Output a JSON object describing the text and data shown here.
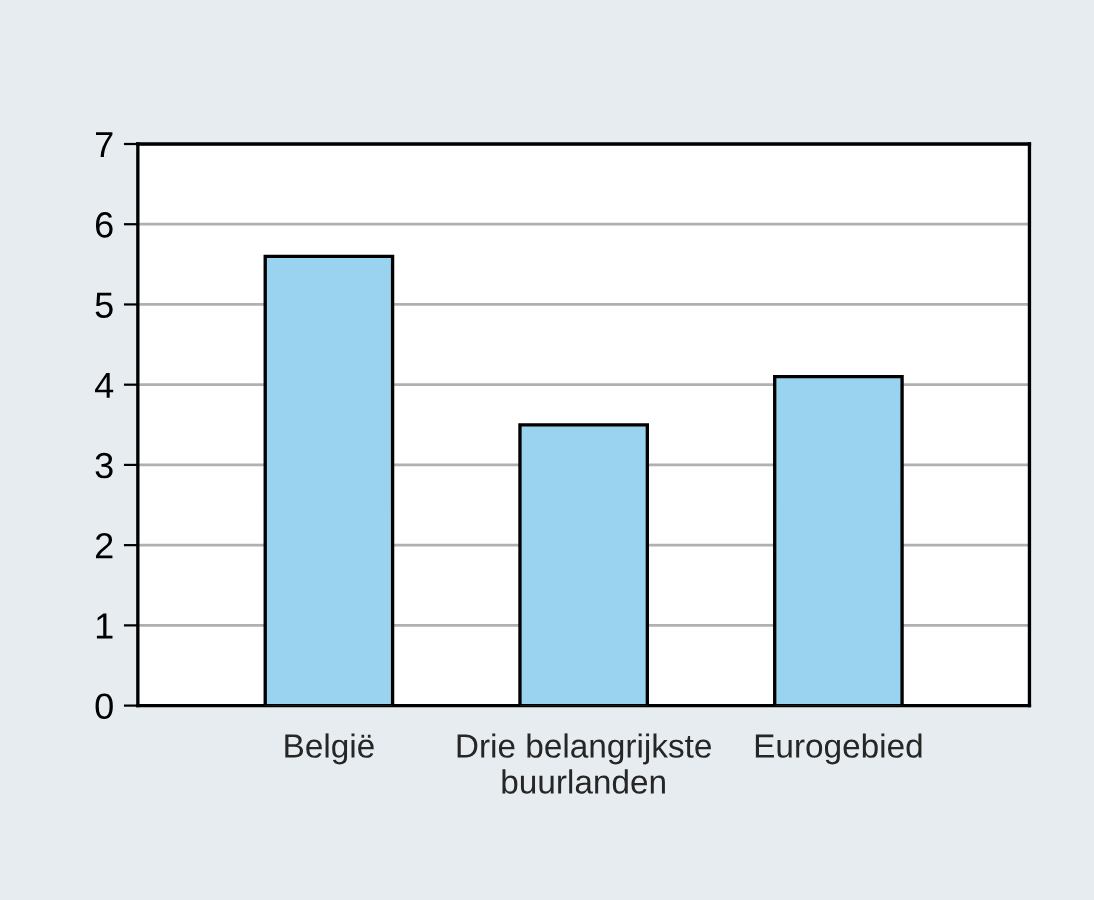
{
  "chart_data": {
    "type": "bar",
    "categories": [
      "België",
      "Drie belangrijkste\nbuurlanden",
      "Eurogebied"
    ],
    "values": [
      5.6,
      3.5,
      4.1
    ],
    "color": "#99d3ef",
    "ylim": [
      0,
      7
    ],
    "yticks": [
      0,
      1,
      2,
      3,
      4,
      5,
      6,
      7
    ],
    "grid": "y",
    "legend": false
  }
}
